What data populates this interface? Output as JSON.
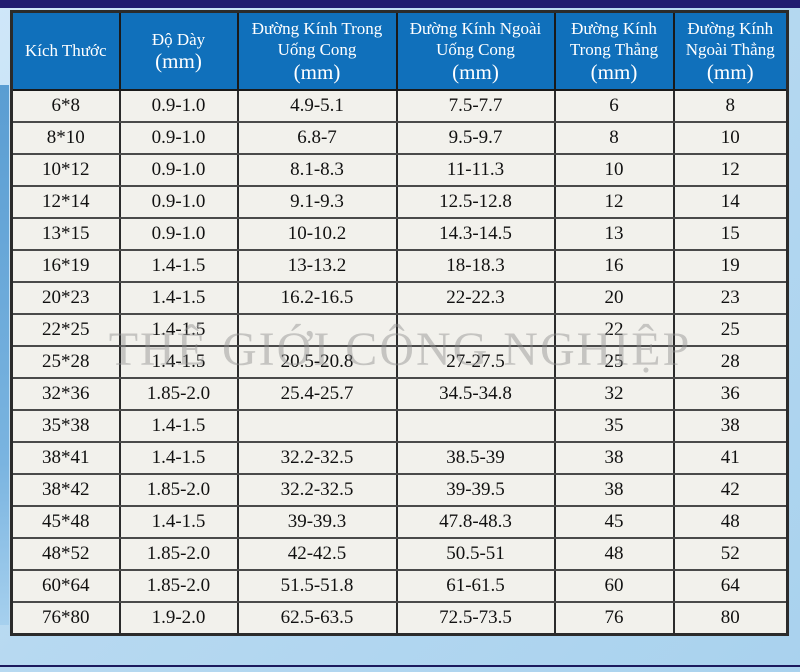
{
  "page": {
    "background_color": "#b7d9f1",
    "top_bar_color": "#211c70",
    "left_strip_color": "#5a9dd2"
  },
  "watermark": {
    "text": "THẾ GIỚI CÔNG NGHIỆP"
  },
  "table": {
    "header_bg": "#1070bb",
    "header_text_color": "#ffffff",
    "cell_bg": "#f2f1ec",
    "columns": [
      {
        "title_lines": [
          "Kích Thước"
        ],
        "unit": null
      },
      {
        "title_lines": [
          "Độ Dày"
        ],
        "unit": "(mm)"
      },
      {
        "title_lines": [
          "Đường Kính Trong",
          "Uống Cong"
        ],
        "unit": "(mm)"
      },
      {
        "title_lines": [
          "Đường Kính Ngoài",
          "Uống Cong"
        ],
        "unit": "(mm)"
      },
      {
        "title_lines": [
          "Đường Kính",
          "Trong Thẳng"
        ],
        "unit": "(mm)"
      },
      {
        "title_lines": [
          "Đường Kính",
          "Ngoài Thẳng"
        ],
        "unit": "(mm)"
      }
    ],
    "rows": [
      [
        "6*8",
        "0.9-1.0",
        "4.9-5.1",
        "7.5-7.7",
        "6",
        "8"
      ],
      [
        "8*10",
        "0.9-1.0",
        "6.8-7",
        "9.5-9.7",
        "8",
        "10"
      ],
      [
        "10*12",
        "0.9-1.0",
        "8.1-8.3",
        "11-11.3",
        "10",
        "12"
      ],
      [
        "12*14",
        "0.9-1.0",
        "9.1-9.3",
        "12.5-12.8",
        "12",
        "14"
      ],
      [
        "13*15",
        "0.9-1.0",
        "10-10.2",
        "14.3-14.5",
        "13",
        "15"
      ],
      [
        "16*19",
        "1.4-1.5",
        "13-13.2",
        "18-18.3",
        "16",
        "19"
      ],
      [
        "20*23",
        "1.4-1.5",
        "16.2-16.5",
        "22-22.3",
        "20",
        "23"
      ],
      [
        "22*25",
        "1.4-1.5",
        "",
        "",
        "22",
        "25"
      ],
      [
        "25*28",
        "1.4-1.5",
        "20.5-20.8",
        "27-27.5",
        "25",
        "28"
      ],
      [
        "32*36",
        "1.85-2.0",
        "25.4-25.7",
        "34.5-34.8",
        "32",
        "36"
      ],
      [
        "35*38",
        "1.4-1.5",
        "",
        "",
        "35",
        "38"
      ],
      [
        "38*41",
        "1.4-1.5",
        "32.2-32.5",
        "38.5-39",
        "38",
        "41"
      ],
      [
        "38*42",
        "1.85-2.0",
        "32.2-32.5",
        "39-39.5",
        "38",
        "42"
      ],
      [
        "45*48",
        "1.4-1.5",
        "39-39.3",
        "47.8-48.3",
        "45",
        "48"
      ],
      [
        "48*52",
        "1.85-2.0",
        "42-42.5",
        "50.5-51",
        "48",
        "52"
      ],
      [
        "60*64",
        "1.85-2.0",
        "51.5-51.8",
        "61-61.5",
        "60",
        "64"
      ],
      [
        "76*80",
        "1.9-2.0",
        "62.5-63.5",
        "72.5-73.5",
        "76",
        "80"
      ]
    ]
  }
}
